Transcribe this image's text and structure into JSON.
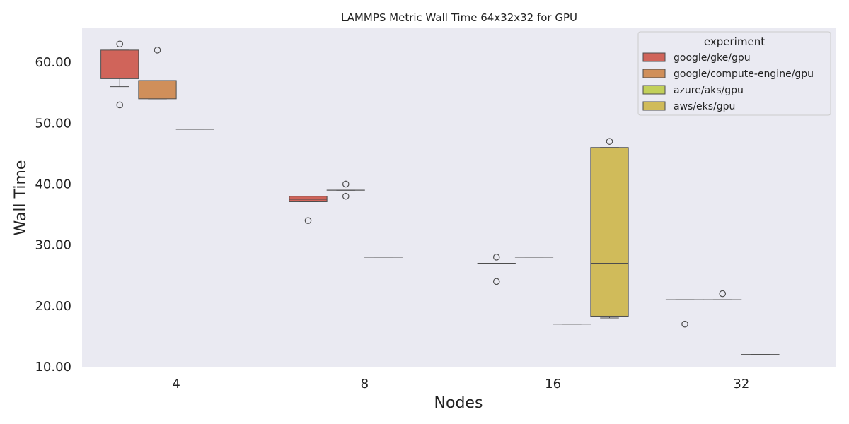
{
  "chart_data": {
    "type": "box",
    "title": "LAMMPS Metric Wall Time 64x32x32 for GPU",
    "xlabel": "Nodes",
    "ylabel": "Wall Time",
    "categories": [
      "4",
      "8",
      "16",
      "32"
    ],
    "ylim": [
      10,
      65
    ],
    "yticks": [
      "10.00",
      "20.00",
      "30.00",
      "40.00",
      "50.00",
      "60.00"
    ],
    "grid": false,
    "legend": {
      "title": "experiment",
      "placement": "top-right"
    },
    "series": [
      {
        "name": "google/gke/gpu",
        "color": "#d0645a",
        "boxes": [
          {
            "category": "4",
            "q1": 57.3,
            "median": 61.7,
            "q3": 62.0,
            "whisker_low": 56.0,
            "whisker_high": 62.0,
            "outliers": [
              63.0,
              53.0
            ]
          },
          {
            "category": "8",
            "q1": 37.1,
            "median": 37.5,
            "q3": 38.0,
            "whisker_low": 37.1,
            "whisker_high": 38.0,
            "outliers": [
              34.0
            ]
          },
          {
            "category": "16",
            "q1": 27.0,
            "median": 27.0,
            "q3": 27.0,
            "whisker_low": 27.0,
            "whisker_high": 27.0,
            "outliers": [
              28.0,
              24.0
            ]
          },
          {
            "category": "32",
            "q1": 21.0,
            "median": 21.0,
            "q3": 21.0,
            "whisker_low": 21.0,
            "whisker_high": 21.0,
            "outliers": [
              17.0
            ]
          }
        ]
      },
      {
        "name": "google/compute-engine/gpu",
        "color": "#d08f5a",
        "boxes": [
          {
            "category": "4",
            "q1": 54.0,
            "median": 57.0,
            "q3": 57.0,
            "whisker_low": 54.0,
            "whisker_high": 57.0,
            "outliers": [
              62.0
            ]
          },
          {
            "category": "8",
            "q1": 39.0,
            "median": 39.0,
            "q3": 39.0,
            "whisker_low": 39.0,
            "whisker_high": 39.0,
            "outliers": [
              40.0,
              38.0
            ]
          },
          {
            "category": "16",
            "q1": 28.0,
            "median": 28.0,
            "q3": 28.0,
            "whisker_low": 28.0,
            "whisker_high": 28.0,
            "outliers": []
          },
          {
            "category": "32",
            "q1": 21.0,
            "median": 21.0,
            "q3": 21.0,
            "whisker_low": 21.0,
            "whisker_high": 21.0,
            "outliers": [
              22.0
            ]
          }
        ]
      },
      {
        "name": "azure/aks/gpu",
        "color": "#c2d05a",
        "boxes": [
          {
            "category": "4",
            "q1": 49.0,
            "median": 49.0,
            "q3": 49.0,
            "whisker_low": 49.0,
            "whisker_high": 49.0,
            "outliers": []
          },
          {
            "category": "8",
            "q1": 28.0,
            "median": 28.0,
            "q3": 28.0,
            "whisker_low": 28.0,
            "whisker_high": 28.0,
            "outliers": []
          },
          {
            "category": "16",
            "q1": 17.0,
            "median": 17.0,
            "q3": 17.0,
            "whisker_low": 17.0,
            "whisker_high": 17.0,
            "outliers": []
          },
          {
            "category": "32",
            "q1": 12.0,
            "median": 12.0,
            "q3": 12.0,
            "whisker_low": 12.0,
            "whisker_high": 12.0,
            "outliers": []
          }
        ]
      },
      {
        "name": "aws/eks/gpu",
        "color": "#d0bb5a",
        "boxes": [
          {
            "category": "16",
            "q1": 18.3,
            "median": 27.0,
            "q3": 46.0,
            "whisker_low": 18.0,
            "whisker_high": 46.0,
            "outliers": [
              47.0
            ]
          }
        ]
      }
    ]
  }
}
